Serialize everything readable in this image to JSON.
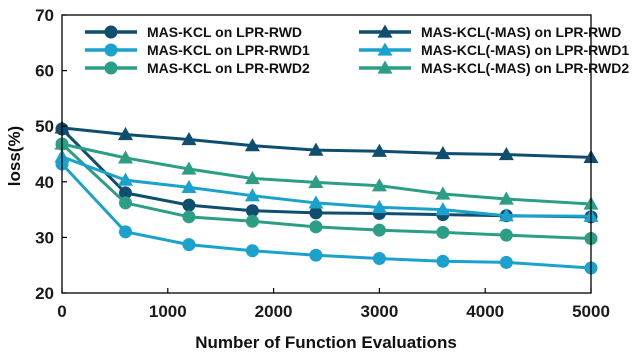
{
  "chart_data": {
    "type": "line",
    "title": "",
    "xlabel": "Number of Function Evaluations",
    "ylabel": "loss(%)",
    "xlim": [
      0,
      5000
    ],
    "ylim": [
      20,
      70
    ],
    "x_ticks": [
      0,
      1000,
      2000,
      3000,
      4000,
      5000
    ],
    "y_ticks": [
      20,
      30,
      40,
      50,
      60,
      70
    ],
    "x_tick_labels": [
      "0",
      "1000",
      "2000",
      "3000",
      "4000",
      "5000"
    ],
    "y_tick_labels": [
      "20",
      "30",
      "40",
      "50",
      "60",
      "70"
    ],
    "grid": false,
    "legend_position": "top",
    "x": [
      0,
      600,
      1200,
      1800,
      2400,
      3000,
      3600,
      4200,
      5000
    ],
    "series": [
      {
        "name": "MAS-KCL on LPR-RWD",
        "color": "#0f4e6e",
        "marker": "circle",
        "values": [
          49.5,
          38.0,
          35.8,
          34.8,
          34.4,
          34.3,
          34.1,
          33.9,
          33.7
        ]
      },
      {
        "name": "MAS-KCL on LPR-RWD1",
        "color": "#1ba2cc",
        "marker": "circle",
        "values": [
          43.2,
          31.0,
          28.7,
          27.6,
          26.8,
          26.2,
          25.7,
          25.5,
          24.5
        ]
      },
      {
        "name": "MAS-KCL on LPR-RWD2",
        "color": "#2d9e86",
        "marker": "circle",
        "values": [
          46.8,
          36.2,
          33.7,
          32.9,
          31.9,
          31.3,
          30.9,
          30.4,
          29.8
        ]
      },
      {
        "name": "MAS-KCL(-MAS) on LPR-RWD",
        "color": "#0f4e6e",
        "marker": "triangle",
        "values": [
          49.7,
          48.5,
          47.6,
          46.5,
          45.7,
          45.5,
          45.1,
          44.9,
          44.4
        ]
      },
      {
        "name": "MAS-KCL(-MAS) on LPR-RWD1",
        "color": "#1ba2cc",
        "marker": "triangle",
        "values": [
          44.5,
          40.3,
          39.0,
          37.5,
          36.2,
          35.4,
          35.0,
          33.9,
          33.8
        ]
      },
      {
        "name": "MAS-KCL(-MAS) on LPR-RWD2",
        "color": "#2d9e86",
        "marker": "triangle",
        "values": [
          46.8,
          44.3,
          42.3,
          40.6,
          39.9,
          39.3,
          37.8,
          36.9,
          36.0
        ]
      }
    ]
  }
}
